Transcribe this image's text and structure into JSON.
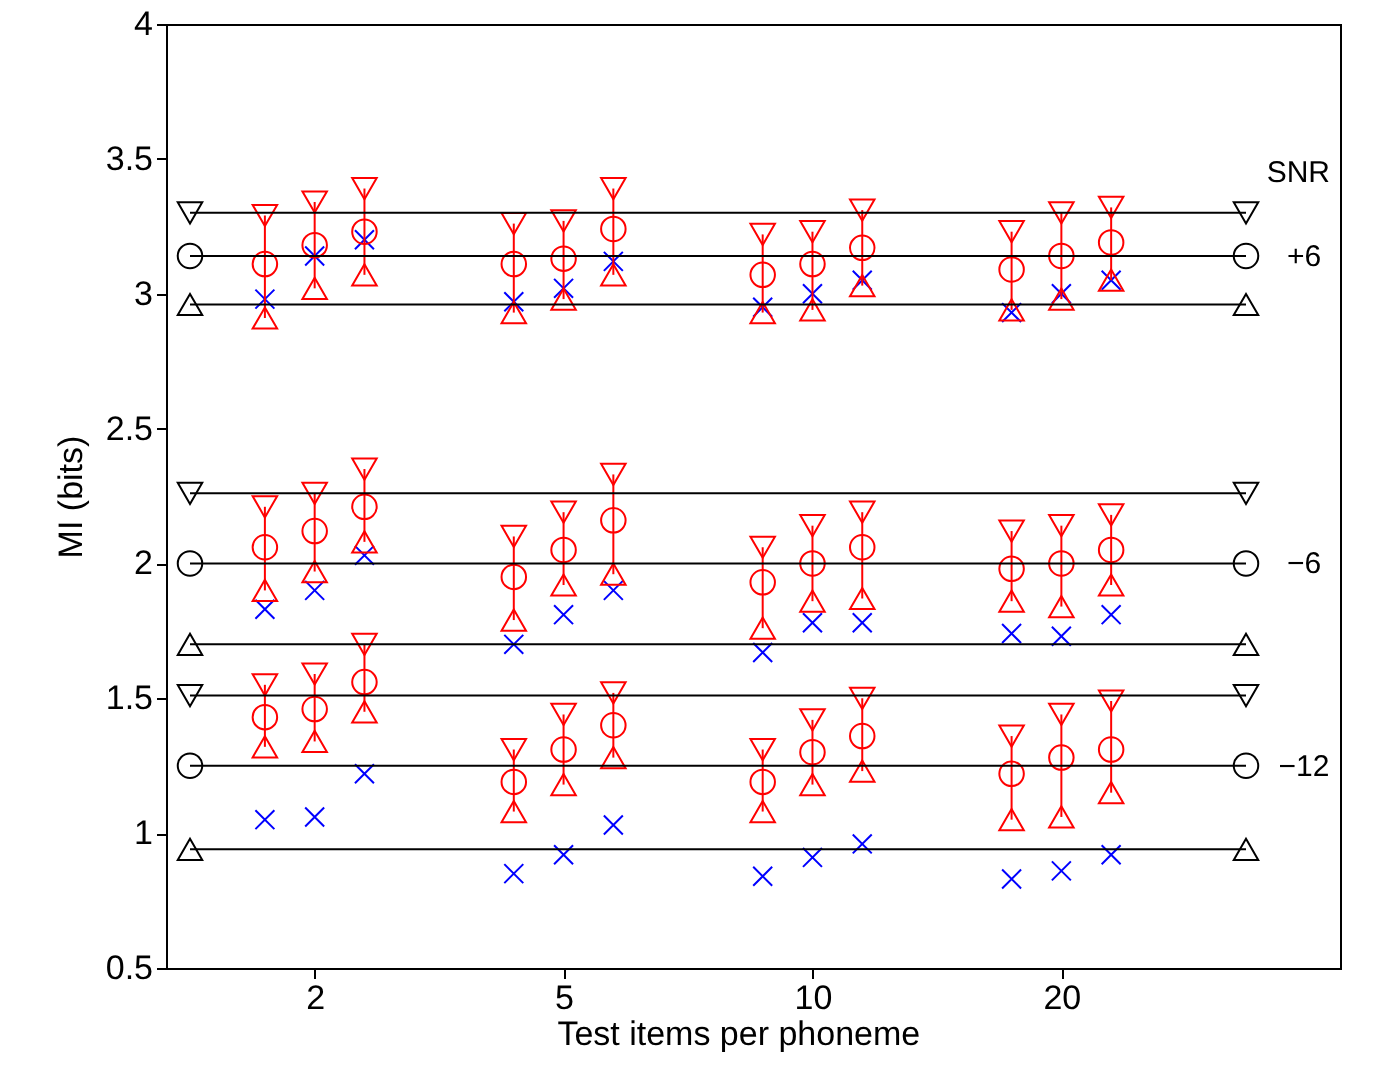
{
  "chart_data": {
    "type": "scatter",
    "xlabel": "Test items per phoneme",
    "ylabel": "MI (bits)",
    "categories": [
      null,
      "2",
      null,
      null,
      null,
      null,
      "5",
      null,
      null,
      null,
      null,
      "10",
      null,
      null,
      null,
      null,
      "20",
      null,
      null,
      null
    ],
    "ylim": [
      0.5,
      4
    ],
    "yticks": [
      0.5,
      1,
      1.5,
      2,
      2.5,
      3,
      3.5,
      4
    ],
    "annotations": [
      "SNR",
      "+6",
      "−6",
      "−12"
    ],
    "ref_lines": [
      {
        "axis": "y",
        "value": 3.3,
        "color": "#000000"
      },
      {
        "axis": "y",
        "value": 3.14,
        "color": "#000000"
      },
      {
        "axis": "y",
        "value": 2.96,
        "color": "#000000"
      },
      {
        "axis": "y",
        "value": 2.26,
        "color": "#000000"
      },
      {
        "axis": "y",
        "value": 2.0,
        "color": "#000000"
      },
      {
        "axis": "y",
        "value": 1.7,
        "color": "#000000"
      },
      {
        "axis": "y",
        "value": 1.51,
        "color": "#000000"
      },
      {
        "axis": "y",
        "value": 1.25,
        "color": "#000000"
      },
      {
        "axis": "y",
        "value": 0.94,
        "color": "#000000"
      }
    ],
    "series": [
      {
        "color": "#0000ff",
        "marker": "cross",
        "values": [
          2.98,
          3.14,
          3.2,
          null,
          null,
          2.97,
          3.02,
          3.12,
          null,
          null,
          2.95,
          3.0,
          3.05,
          null,
          null,
          2.93,
          3.0,
          3.05,
          null,
          null
        ]
      },
      {
        "color": "#0000ff",
        "marker": "cross",
        "values": [
          1.83,
          1.9,
          2.03,
          null,
          null,
          1.7,
          1.81,
          1.9,
          null,
          null,
          1.67,
          1.78,
          1.78,
          null,
          null,
          1.74,
          1.73,
          1.81,
          null,
          null
        ]
      },
      {
        "color": "#0000ff",
        "marker": "cross",
        "values": [
          1.05,
          1.06,
          1.22,
          null,
          null,
          0.85,
          0.92,
          1.03,
          null,
          null,
          0.84,
          0.91,
          0.96,
          null,
          null,
          0.83,
          0.86,
          0.92,
          null,
          null
        ]
      },
      {
        "color": "#ff0000",
        "marker": "circle",
        "values": [
          3.11,
          3.18,
          3.23,
          null,
          null,
          3.11,
          3.13,
          3.24,
          null,
          null,
          3.07,
          3.11,
          3.17,
          null,
          null,
          3.09,
          3.14,
          3.19,
          null,
          null
        ],
        "errors": [
          [
            2.91,
            3.29
          ],
          [
            3.02,
            3.34
          ],
          [
            3.07,
            3.39
          ],
          null,
          null,
          [
            2.93,
            3.26
          ],
          [
            2.98,
            3.27
          ],
          [
            3.07,
            3.39
          ],
          null,
          null,
          [
            2.93,
            3.22
          ],
          [
            2.94,
            3.23
          ],
          [
            3.03,
            3.31
          ],
          null,
          null,
          [
            2.94,
            3.23
          ],
          [
            2.98,
            3.3
          ],
          [
            3.05,
            3.32
          ],
          null,
          null
        ]
      },
      {
        "color": "#ff0000",
        "marker": "circle",
        "values": [
          2.06,
          2.12,
          2.21,
          null,
          null,
          1.95,
          2.05,
          2.16,
          null,
          null,
          1.93,
          2.0,
          2.06,
          null,
          null,
          1.98,
          2.0,
          2.05,
          null,
          null
        ],
        "errors": [
          [
            1.9,
            2.21
          ],
          [
            1.97,
            2.26
          ],
          [
            2.08,
            2.35
          ],
          null,
          null,
          [
            1.79,
            2.1
          ],
          [
            1.92,
            2.19
          ],
          [
            1.96,
            2.33
          ],
          null,
          null,
          [
            1.76,
            2.06
          ],
          [
            1.86,
            2.14
          ],
          [
            1.87,
            2.19
          ],
          null,
          null,
          [
            1.86,
            2.12
          ],
          [
            1.84,
            2.14
          ],
          [
            1.92,
            2.18
          ],
          null,
          null
        ]
      },
      {
        "color": "#ff0000",
        "marker": "circle",
        "values": [
          1.43,
          1.46,
          1.56,
          null,
          null,
          1.19,
          1.31,
          1.4,
          null,
          null,
          1.19,
          1.3,
          1.36,
          null,
          null,
          1.22,
          1.28,
          1.31,
          null,
          null
        ],
        "errors": [
          [
            1.32,
            1.55
          ],
          [
            1.34,
            1.59
          ],
          [
            1.45,
            1.7
          ],
          null,
          null,
          [
            1.08,
            1.31
          ],
          [
            1.18,
            1.44
          ],
          [
            1.28,
            1.52
          ],
          null,
          null,
          [
            1.08,
            1.31
          ],
          [
            1.18,
            1.42
          ],
          [
            1.23,
            1.5
          ],
          null,
          null,
          [
            1.05,
            1.36
          ],
          [
            1.06,
            1.44
          ],
          [
            1.15,
            1.49
          ],
          null,
          null
        ]
      }
    ]
  }
}
